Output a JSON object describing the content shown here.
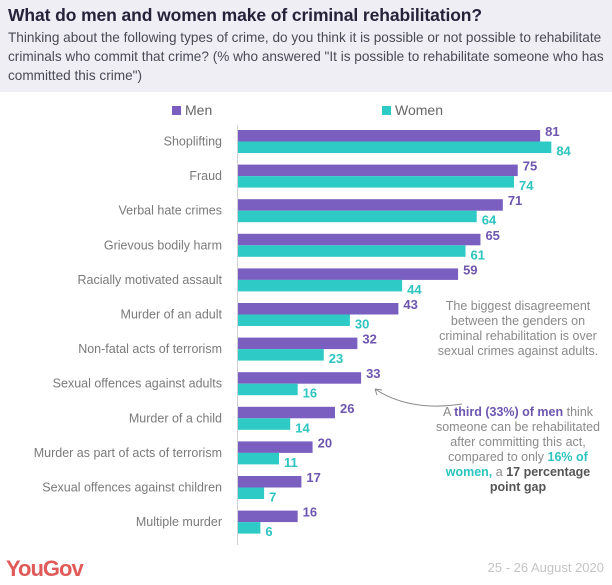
{
  "header": {
    "title": "What do men and women make of criminal rehabilitation?",
    "subtitle": "Thinking about the following types of crime, do you think it is possible or not possible to rehabilitate criminals who commit that crime? (% who answered \"It is possible to rehabilitate someone who has committed this crime\")"
  },
  "legend": {
    "men": "Men",
    "women": "Women"
  },
  "colors": {
    "men": "#7a5fc0",
    "women": "#2ecbc6",
    "header_bg": "#efeef5",
    "brand": "#e05a5a"
  },
  "chart_data": {
    "type": "bar",
    "orientation": "horizontal",
    "title": "What do men and women make of criminal rehabilitation?",
    "xlabel": "",
    "ylabel": "",
    "xlim": [
      0,
      100
    ],
    "grid": false,
    "legend_position": "top",
    "categories": [
      "Shoplifting",
      "Fraud",
      "Verbal hate crimes",
      "Grievous bodily harm",
      "Racially motivated assault",
      "Murder of an adult",
      "Non-fatal acts of terrorism",
      "Sexual offences against adults",
      "Murder of a child",
      "Murder as part of acts of terrorism",
      "Sexual offences against children",
      "Multiple murder"
    ],
    "series": [
      {
        "name": "Men",
        "values": [
          81,
          75,
          71,
          65,
          59,
          43,
          32,
          33,
          26,
          20,
          17,
          16
        ]
      },
      {
        "name": "Women",
        "values": [
          84,
          74,
          64,
          61,
          44,
          30,
          23,
          16,
          14,
          11,
          7,
          6
        ]
      }
    ]
  },
  "annotation": {
    "intro": "The biggest disagreement between the genders on criminal rehabilitation is over sexual crimes against adults.",
    "part_a": "A ",
    "men_highlight": "third (33%) of men",
    "part_b": " think someone can be rehabilitated after committing this act, compared to only ",
    "women_highlight": "16% of women,",
    "part_c": " a ",
    "gap_highlight": "17 percentage point gap"
  },
  "footer": {
    "logo": "YouGov",
    "date": "25 - 26 August 2020"
  }
}
